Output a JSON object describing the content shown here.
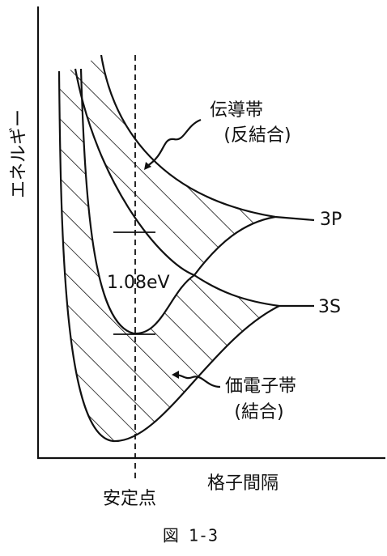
{
  "axes": {
    "y_label": "エネルギー",
    "x_label": "格子間隔"
  },
  "bands": {
    "conduction": {
      "name": "伝導帯",
      "note": "(反結合)"
    },
    "valence": {
      "name": "価電子帯",
      "note": "(結合)"
    }
  },
  "levels": {
    "upper": "3P",
    "lower": "3S"
  },
  "gap_label": "1.08eV",
  "marker_label": "安定点",
  "caption": "図 1-3"
}
